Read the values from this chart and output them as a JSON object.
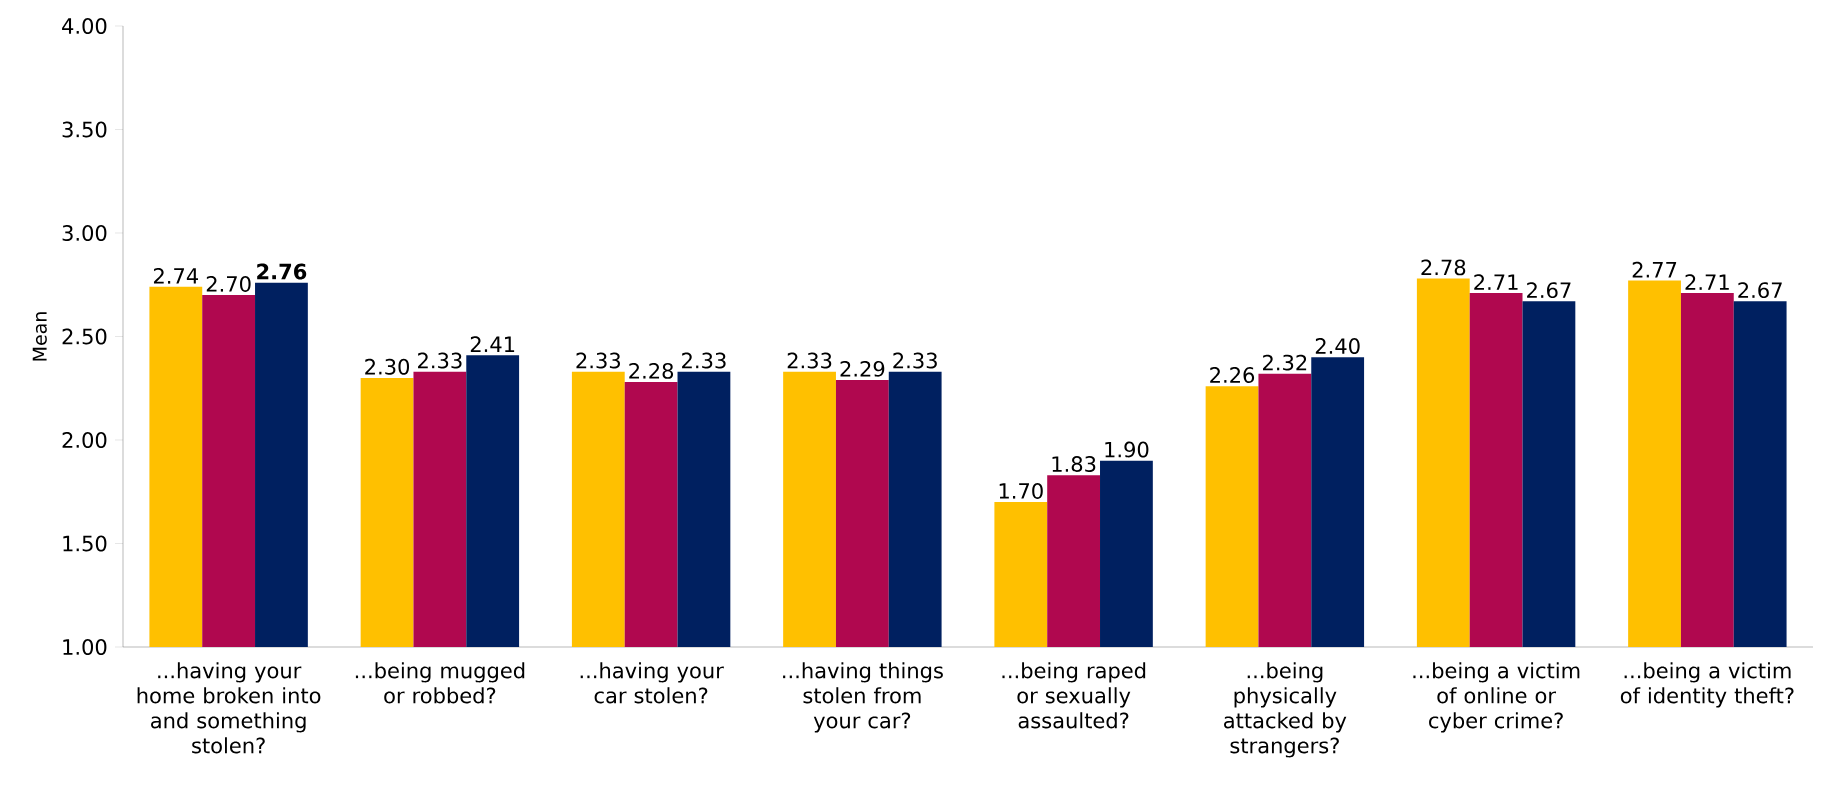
{
  "chart_data": {
    "type": "bar",
    "ylabel": "Mean",
    "categories": [
      "...having your home broken into and something stolen?",
      "...being mugged or robbed?",
      "...having your car stolen?",
      "...having things stolen from your car?",
      "...being raped or sexually assaulted?",
      "...being physically attacked by strangers?",
      "...being a victim of online or cyber crime?",
      "...being a victim of identity theft?"
    ],
    "series": [
      {
        "color": "#ffc000",
        "values": [
          2.74,
          2.3,
          2.33,
          2.33,
          1.7,
          2.26,
          2.78,
          2.77
        ],
        "value_labels": [
          "2.74",
          "2.30",
          "2.33",
          "2.33",
          "1.70",
          "2.26",
          "2.78",
          "2.77"
        ]
      },
      {
        "color": "#b0084f",
        "values": [
          2.7,
          2.33,
          2.28,
          2.29,
          1.83,
          2.32,
          2.71,
          2.71
        ],
        "value_labels": [
          "2.70",
          "2.33",
          "2.28",
          "2.29",
          "1.83",
          "2.32",
          "2.71",
          "2.71"
        ]
      },
      {
        "color": "#002060",
        "values": [
          2.76,
          2.41,
          2.33,
          2.33,
          1.9,
          2.4,
          2.67,
          2.67
        ],
        "value_labels": [
          "**2.76**",
          "2.41",
          "2.33",
          "2.33",
          "1.90",
          "2.40",
          "2.67",
          "2.67"
        ]
      }
    ],
    "ylim": [
      1,
      4
    ],
    "yticks": [
      {
        "value": 1,
        "label": "1.00"
      },
      {
        "value": 1.5,
        "label": "1.50"
      },
      {
        "value": 2,
        "label": "2.00"
      },
      {
        "value": 2.5,
        "label": "2.50"
      },
      {
        "value": 3,
        "label": "3.00"
      },
      {
        "value": 3.5,
        "label": "3.50"
      },
      {
        "value": 4,
        "label": "4.00"
      }
    ],
    "grid": false
  }
}
